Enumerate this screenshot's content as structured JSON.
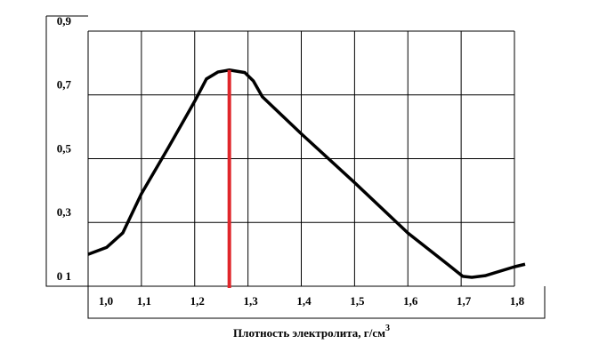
{
  "chart_data": {
    "type": "line",
    "x_label": "Плотность электролита, г/см",
    "x_label_sup": "3",
    "x": [
      1.0,
      1.035,
      1.065,
      1.1,
      1.15,
      1.2,
      1.222,
      1.244,
      1.265,
      1.294,
      1.31,
      1.327,
      1.4,
      1.5,
      1.6,
      1.67,
      1.703,
      1.72,
      1.745,
      1.8,
      1.82
    ],
    "series": [
      {
        "color": "#000000",
        "values": [
          0.2,
          0.222,
          0.267,
          0.39,
          0.533,
          0.68,
          0.75,
          0.772,
          0.778,
          0.77,
          0.744,
          0.694,
          0.578,
          0.425,
          0.267,
          0.175,
          0.131,
          0.128,
          0.133,
          0.161,
          0.169
        ]
      }
    ],
    "marker": {
      "x": 1.265,
      "y": 0.778,
      "color": "#e0262b"
    },
    "xlim": [
      1.0,
      1.8
    ],
    "ylim": [
      0.1,
      0.9
    ],
    "xticks": [
      {
        "value": 1.0,
        "label": "1,0"
      },
      {
        "value": 1.1,
        "label": "1,1"
      },
      {
        "value": 1.2,
        "label": "1,2"
      },
      {
        "value": 1.3,
        "label": "1,3"
      },
      {
        "value": 1.4,
        "label": "1,4"
      },
      {
        "value": 1.5,
        "label": "1,5"
      },
      {
        "value": 1.6,
        "label": "1,6"
      },
      {
        "value": 1.7,
        "label": "1,7"
      },
      {
        "value": 1.8,
        "label": "1,8"
      }
    ],
    "yticks": [
      {
        "value": 0.1,
        "label": "0 1"
      },
      {
        "value": 0.3,
        "label": "0,3"
      },
      {
        "value": 0.5,
        "label": "0,5"
      },
      {
        "value": 0.7,
        "label": "0,7"
      },
      {
        "value": 0.9,
        "label": "0,9"
      }
    ],
    "grid": true
  }
}
